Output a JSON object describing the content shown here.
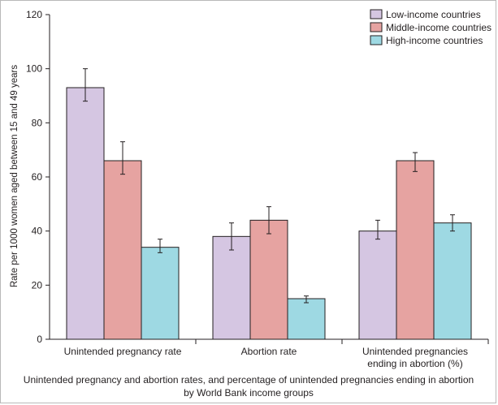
{
  "chart_data": {
    "type": "bar",
    "categories": [
      [
        "Unintended pregnancy rate"
      ],
      [
        "Abortion rate"
      ],
      [
        "Unintended pregnancies",
        "ending in abortion (%)"
      ]
    ],
    "series": [
      {
        "name": "Low-income countries",
        "color": "#d5c6e2",
        "values": [
          93,
          38,
          40
        ],
        "error": [
          [
            88,
            100
          ],
          [
            33,
            43
          ],
          [
            37,
            44
          ]
        ]
      },
      {
        "name": "Middle-income countries",
        "color": "#e6a3a1",
        "values": [
          66,
          44,
          66
        ],
        "error": [
          [
            61,
            73
          ],
          [
            39,
            49
          ],
          [
            62,
            69
          ]
        ]
      },
      {
        "name": "High-income countries",
        "color": "#9ed9e3",
        "values": [
          34,
          15,
          43
        ],
        "error": [
          [
            32,
            37
          ],
          [
            13.5,
            16
          ],
          [
            40,
            46
          ]
        ]
      }
    ],
    "ylabel": "Rate per 1000 women aged between 15 and 49 years",
    "ylim": [
      0,
      120
    ],
    "yticks": [
      0,
      20,
      40,
      60,
      80,
      100,
      120
    ],
    "legend_position": "top-right",
    "grid": false
  },
  "caption": [
    "Unintended pregnancy and abortion rates, and percentage of unintended pregnancies ending in abortion",
    "by World Bank income groups"
  ]
}
